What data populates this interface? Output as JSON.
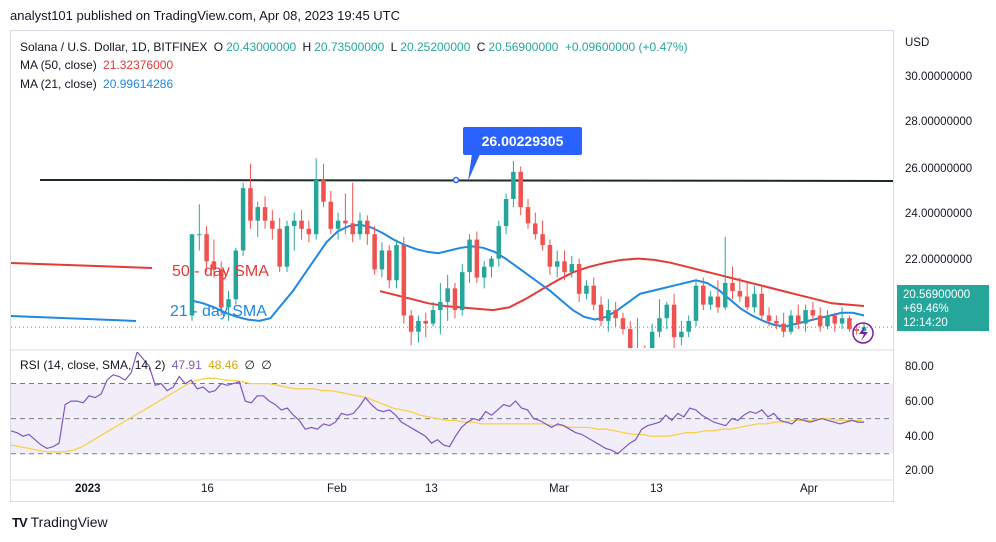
{
  "header": {
    "text": "analyst101 published on TradingView.com, Apr 08, 2023 19:45 UTC"
  },
  "legend": {
    "symbol": "Solana / U.S. Dollar, 1D, BITFINEX",
    "o_label": "O",
    "o": "20.43000000",
    "h_label": "H",
    "h": "20.73500000",
    "l_label": "L",
    "l": "20.25200000",
    "c_label": "C",
    "c": "20.56900000",
    "change": "+0.09600000 (+0.47%)",
    "ma50_label": "MA (50, close)",
    "ma50": "21.32376000",
    "ma21_label": "MA (21, close)",
    "ma21": "20.99614286",
    "rsi_label": "RSI (14, close, SMA, 14, 2)",
    "rsi": "47.91",
    "rsi_sma": "48.46",
    "glyph": "∅"
  },
  "annotations": {
    "resistance": "26.00229305",
    "sma50": "50 - day SMA",
    "sma21": "21 - day SMA"
  },
  "price_tag": {
    "price": "20.56900000",
    "pct": "+69.46%",
    "time": "12:14:20"
  },
  "footer": {
    "brand": "TradingView",
    "logo": "TV"
  },
  "colors": {
    "up": "#26a69a",
    "down": "#ef5350",
    "ma50": "#e53935",
    "ma21": "#1e88e5",
    "rsi": "#7e57c2",
    "rsi_sma": "#f5d14b",
    "resistance": "#1b2a22",
    "callout": "#2962ff"
  },
  "chart_data": [
    {
      "type": "candlestick",
      "currency": "USD",
      "x_tick_labels": [
        "2023",
        "16",
        "Feb",
        "13",
        "Mar",
        "13",
        "Apr"
      ],
      "y_tick_labels": [
        "30.00000000",
        "28.00000000",
        "26.00000000",
        "24.00000000",
        "22.00000000"
      ],
      "y_ticks": [
        30,
        28,
        26,
        24,
        22
      ],
      "ylim": [
        19.8,
        31.5
      ],
      "resistance_level": 26.00229305,
      "candles": [
        {
          "o": 21,
          "h": 24,
          "l": 20.8,
          "c": 24
        },
        {
          "o": 24,
          "h": 25.1,
          "l": 23.4,
          "c": 24
        },
        {
          "o": 24,
          "h": 24.3,
          "l": 22.6,
          "c": 23
        },
        {
          "o": 23,
          "h": 23.8,
          "l": 22.4,
          "c": 22.7
        },
        {
          "o": 22.7,
          "h": 23,
          "l": 21,
          "c": 21.3
        },
        {
          "o": 21.3,
          "h": 21.9,
          "l": 20.8,
          "c": 21.6
        },
        {
          "o": 21.6,
          "h": 23.5,
          "l": 21.4,
          "c": 23.4
        },
        {
          "o": 23.4,
          "h": 25.9,
          "l": 23.2,
          "c": 25.7
        },
        {
          "o": 25.7,
          "h": 26.6,
          "l": 24.2,
          "c": 24.5
        },
        {
          "o": 24.5,
          "h": 25.2,
          "l": 23.9,
          "c": 25
        },
        {
          "o": 25,
          "h": 25.4,
          "l": 24.2,
          "c": 24.5
        },
        {
          "o": 24.5,
          "h": 24.9,
          "l": 23.8,
          "c": 24.2
        },
        {
          "o": 24.2,
          "h": 24.6,
          "l": 22.6,
          "c": 22.8
        },
        {
          "o": 22.8,
          "h": 24.5,
          "l": 22.6,
          "c": 24.3
        },
        {
          "o": 24.3,
          "h": 24.8,
          "l": 23.4,
          "c": 24.5
        },
        {
          "o": 24.5,
          "h": 24.9,
          "l": 23.8,
          "c": 24.2
        },
        {
          "o": 24.2,
          "h": 24.5,
          "l": 23.7,
          "c": 24
        },
        {
          "o": 24,
          "h": 26.8,
          "l": 23.8,
          "c": 26
        },
        {
          "o": 26,
          "h": 26.6,
          "l": 25,
          "c": 25.2
        },
        {
          "o": 25.2,
          "h": 25.6,
          "l": 24,
          "c": 24.2
        },
        {
          "o": 24.2,
          "h": 24.8,
          "l": 23.8,
          "c": 24.5
        },
        {
          "o": 24.5,
          "h": 25.5,
          "l": 24,
          "c": 24.4
        },
        {
          "o": 24.4,
          "h": 25.9,
          "l": 23.7,
          "c": 24
        },
        {
          "o": 24,
          "h": 24.8,
          "l": 23.8,
          "c": 24.5
        },
        {
          "o": 24.5,
          "h": 24.7,
          "l": 23.6,
          "c": 24
        },
        {
          "o": 24,
          "h": 24.3,
          "l": 22.5,
          "c": 22.7
        },
        {
          "o": 22.7,
          "h": 23.7,
          "l": 22.4,
          "c": 23.4
        },
        {
          "o": 23.4,
          "h": 23.6,
          "l": 22,
          "c": 22.3
        },
        {
          "o": 22.3,
          "h": 23.8,
          "l": 22,
          "c": 23.6
        },
        {
          "o": 23.6,
          "h": 23.9,
          "l": 20.7,
          "c": 21
        },
        {
          "o": 21,
          "h": 21.2,
          "l": 19.9,
          "c": 20.4
        },
        {
          "o": 20.4,
          "h": 21,
          "l": 20,
          "c": 20.8
        },
        {
          "o": 20.8,
          "h": 21.1,
          "l": 20.2,
          "c": 20.7
        },
        {
          "o": 20.7,
          "h": 21.5,
          "l": 20.6,
          "c": 21.2
        },
        {
          "o": 21.2,
          "h": 22.2,
          "l": 20.3,
          "c": 21.5
        },
        {
          "o": 21.5,
          "h": 22.5,
          "l": 20.8,
          "c": 22
        },
        {
          "o": 22,
          "h": 22.2,
          "l": 20.9,
          "c": 21.2
        },
        {
          "o": 21.2,
          "h": 22.9,
          "l": 21,
          "c": 22.6
        },
        {
          "o": 22.6,
          "h": 24,
          "l": 22.2,
          "c": 23.8
        },
        {
          "o": 23.8,
          "h": 24.1,
          "l": 22.2,
          "c": 22.4
        },
        {
          "o": 22.4,
          "h": 23,
          "l": 22,
          "c": 22.8
        },
        {
          "o": 22.8,
          "h": 23.2,
          "l": 22.4,
          "c": 23.1
        },
        {
          "o": 23.1,
          "h": 24.5,
          "l": 22.8,
          "c": 24.3
        },
        {
          "o": 24.3,
          "h": 25.5,
          "l": 24,
          "c": 25.3
        },
        {
          "o": 25.3,
          "h": 26.7,
          "l": 25,
          "c": 26.3
        },
        {
          "o": 26.3,
          "h": 26.5,
          "l": 24.7,
          "c": 25
        },
        {
          "o": 25,
          "h": 25.3,
          "l": 24.2,
          "c": 24.4
        },
        {
          "o": 24.4,
          "h": 24.8,
          "l": 23.8,
          "c": 24
        },
        {
          "o": 24,
          "h": 24.5,
          "l": 23.4,
          "c": 23.6
        },
        {
          "o": 23.6,
          "h": 23.8,
          "l": 22.5,
          "c": 22.8
        },
        {
          "o": 22.8,
          "h": 23.4,
          "l": 22.4,
          "c": 23
        },
        {
          "o": 23,
          "h": 23.4,
          "l": 22.3,
          "c": 22.6
        },
        {
          "o": 22.6,
          "h": 23.2,
          "l": 22.4,
          "c": 22.9
        },
        {
          "o": 22.9,
          "h": 23.1,
          "l": 21.5,
          "c": 21.8
        },
        {
          "o": 21.8,
          "h": 22.3,
          "l": 21.6,
          "c": 22.1
        },
        {
          "o": 22.1,
          "h": 22.4,
          "l": 21.2,
          "c": 21.4
        },
        {
          "o": 21.4,
          "h": 21.7,
          "l": 20.6,
          "c": 20.8
        },
        {
          "o": 20.8,
          "h": 21.6,
          "l": 20.4,
          "c": 21.2
        },
        {
          "o": 21.2,
          "h": 21.5,
          "l": 20.6,
          "c": 20.9
        },
        {
          "o": 20.9,
          "h": 21.1,
          "l": 20.3,
          "c": 20.5
        },
        {
          "o": 20.5,
          "h": 20.8,
          "l": 19.4,
          "c": 19.6
        },
        {
          "o": 19.6,
          "h": 20.9,
          "l": 19,
          "c": 19.7
        },
        {
          "o": 19.7,
          "h": 19.9,
          "l": 17.5,
          "c": 17.8
        },
        {
          "o": 17.8,
          "h": 20.7,
          "l": 17.4,
          "c": 20.4
        },
        {
          "o": 20.4,
          "h": 21.6,
          "l": 20.2,
          "c": 20.9
        },
        {
          "o": 20.9,
          "h": 21.5,
          "l": 20.5,
          "c": 21.4
        },
        {
          "o": 21.4,
          "h": 21.8,
          "l": 19.8,
          "c": 20.2
        },
        {
          "o": 20.2,
          "h": 20.8,
          "l": 19.9,
          "c": 20.4
        },
        {
          "o": 20.4,
          "h": 21,
          "l": 20.2,
          "c": 20.8
        },
        {
          "o": 20.8,
          "h": 22.3,
          "l": 20.6,
          "c": 22.1
        },
        {
          "o": 22.1,
          "h": 22.4,
          "l": 21.2,
          "c": 21.4
        },
        {
          "o": 21.4,
          "h": 21.9,
          "l": 21.2,
          "c": 21.7
        },
        {
          "o": 21.7,
          "h": 22.3,
          "l": 21.1,
          "c": 21.3
        },
        {
          "o": 21.3,
          "h": 23.9,
          "l": 21.2,
          "c": 22.2
        },
        {
          "o": 22.2,
          "h": 22.8,
          "l": 21.6,
          "c": 21.9
        },
        {
          "o": 21.9,
          "h": 22.4,
          "l": 21.5,
          "c": 21.7
        },
        {
          "o": 21.7,
          "h": 22.2,
          "l": 21.2,
          "c": 21.3
        },
        {
          "o": 21.3,
          "h": 22.1,
          "l": 21.1,
          "c": 21.8
        },
        {
          "o": 21.8,
          "h": 22.1,
          "l": 20.8,
          "c": 21
        },
        {
          "o": 21,
          "h": 21.3,
          "l": 20.6,
          "c": 20.8
        },
        {
          "o": 20.8,
          "h": 21,
          "l": 20.5,
          "c": 20.7
        },
        {
          "o": 20.7,
          "h": 21.1,
          "l": 20.2,
          "c": 20.4
        },
        {
          "o": 20.4,
          "h": 21.2,
          "l": 20.3,
          "c": 21
        },
        {
          "o": 21,
          "h": 21.4,
          "l": 20.5,
          "c": 20.7
        },
        {
          "o": 20.7,
          "h": 21.4,
          "l": 20.4,
          "c": 21.2
        },
        {
          "o": 21.2,
          "h": 21.5,
          "l": 20.8,
          "c": 21
        },
        {
          "o": 21,
          "h": 21.3,
          "l": 20.4,
          "c": 20.6
        },
        {
          "o": 20.6,
          "h": 21.2,
          "l": 20.5,
          "c": 21
        },
        {
          "o": 21,
          "h": 21.1,
          "l": 20.4,
          "c": 20.7
        },
        {
          "o": 20.7,
          "h": 21.3,
          "l": 20.5,
          "c": 20.9
        },
        {
          "o": 20.9,
          "h": 21,
          "l": 20.4,
          "c": 20.5
        },
        {
          "o": 20.5,
          "h": 20.7,
          "l": 20.3,
          "c": 20.43
        },
        {
          "o": 20.43,
          "h": 20.735,
          "l": 20.252,
          "c": 20.569
        }
      ],
      "ma50": [
        21.9,
        21.75,
        21.6,
        21.45,
        21.35,
        21.3,
        21.25,
        21.2,
        21.3,
        21.6,
        21.95,
        22.3,
        22.6,
        22.8,
        22.95,
        23.05,
        23.1,
        23.05,
        22.95,
        22.8,
        22.65,
        22.5,
        22.35,
        22.2,
        22.05,
        21.9,
        21.75,
        21.6,
        21.45,
        21.4,
        21.35
      ],
      "ma21": [
        21.55,
        21.45,
        21.3,
        21.1,
        20.95,
        20.85,
        20.8,
        20.9,
        21.4,
        21.9,
        22.5,
        23.1,
        23.7,
        24.1,
        24.3,
        24.35,
        24.25,
        24.05,
        23.8,
        23.6,
        23.45,
        23.35,
        23.3,
        23.4,
        23.5,
        23.55,
        23.5,
        23.35,
        23.1,
        22.8,
        22.5,
        22.2,
        21.9,
        21.55,
        21.2,
        20.95,
        20.85,
        20.95,
        21.2,
        21.5,
        21.8,
        21.9,
        22.0,
        22.1,
        22.2,
        22.3,
        22.2,
        21.95,
        21.6,
        21.25,
        21.0,
        20.8,
        20.65,
        20.6,
        20.7,
        20.8,
        20.9,
        21.0,
        21.1,
        21.1,
        21.0
      ]
    },
    {
      "type": "line",
      "title": "RSI (14, close, SMA, 14, 2)",
      "y_ticks": [
        80,
        60,
        40,
        20
      ],
      "y_tick_labels": [
        "80.00",
        "60.00",
        "40.00",
        "20.00"
      ],
      "ylim": [
        15,
        88
      ],
      "band": [
        30,
        70
      ],
      "rsi": [
        43,
        42,
        40,
        41,
        38,
        35,
        33,
        34,
        36,
        58,
        60,
        60,
        59,
        63,
        62,
        64,
        72,
        75,
        74,
        72,
        76,
        88,
        84,
        80,
        69,
        70,
        66,
        68,
        74,
        70,
        72,
        67,
        68,
        65,
        66,
        70,
        69,
        70,
        71,
        60,
        59,
        63,
        63,
        60,
        58,
        55,
        56,
        52,
        49,
        44,
        45,
        44,
        47,
        46,
        48,
        53,
        52,
        53,
        57,
        62,
        58,
        55,
        54,
        55,
        52,
        48,
        46,
        44,
        42,
        40,
        36,
        38,
        35,
        34,
        40,
        45,
        48,
        50,
        49,
        54,
        52,
        55,
        58,
        57,
        60,
        56,
        55,
        50,
        49,
        47,
        45,
        47,
        46,
        44,
        42,
        41,
        39,
        37,
        35,
        33,
        32,
        30,
        33,
        36,
        38,
        44,
        46,
        47,
        48,
        52,
        49,
        53,
        51,
        56,
        55,
        52,
        50,
        48,
        47,
        46,
        50,
        49,
        52,
        54,
        53,
        55,
        51,
        53,
        49,
        48,
        47,
        50,
        49,
        48,
        49,
        50,
        49,
        48,
        47,
        48,
        49,
        48,
        47.91
      ],
      "rsi_sma": [
        35,
        34,
        33,
        32,
        31,
        31,
        31,
        32,
        34,
        37,
        40,
        43,
        46,
        49,
        52,
        55,
        58,
        61,
        64,
        67,
        70,
        72,
        73,
        73,
        72,
        72,
        71,
        70,
        70,
        70,
        69,
        68,
        67,
        67,
        67,
        66,
        66,
        65,
        64,
        63,
        62,
        60,
        58,
        56,
        55,
        54,
        52,
        51,
        50,
        49,
        49,
        48,
        48,
        47,
        47,
        47,
        47,
        47,
        47,
        47,
        47,
        46,
        46,
        45,
        45,
        45,
        44,
        44,
        43,
        42,
        41,
        41,
        40,
        40,
        40,
        41,
        42,
        42,
        43,
        43,
        44,
        44,
        45,
        46,
        47,
        47,
        48,
        48,
        49,
        49,
        49,
        50,
        50,
        49,
        49,
        49,
        48.46
      ]
    }
  ]
}
